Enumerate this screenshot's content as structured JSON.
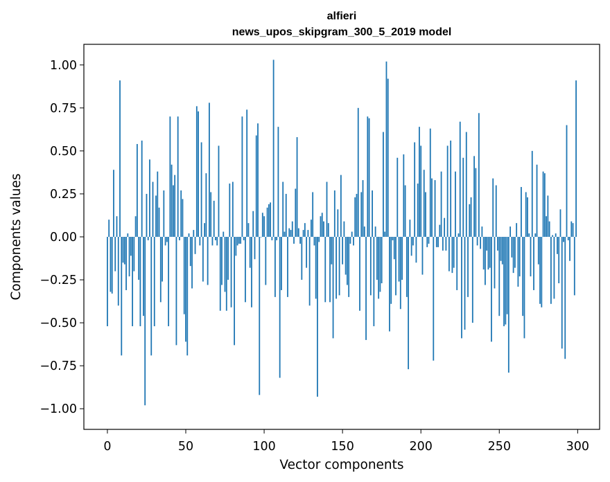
{
  "chart_data": {
    "type": "bar",
    "title_line1": "alfieri",
    "title_line2": "news_upos_skipgram_300_5_2019 model",
    "xlabel": "Vector components",
    "ylabel": "Components values",
    "xlim": [
      -15,
      314
    ],
    "ylim": [
      -1.12,
      1.12
    ],
    "xticks": [
      0,
      50,
      100,
      150,
      200,
      250,
      300
    ],
    "xtick_labels": [
      "0",
      "50",
      "100",
      "150",
      "200",
      "250",
      "300"
    ],
    "yticks": [
      1.0,
      0.75,
      0.5,
      0.25,
      0.0,
      -0.25,
      -0.5,
      -0.75,
      -1.0
    ],
    "ytick_labels": [
      "1.00",
      "0.75",
      "0.50",
      "0.25",
      "0.00",
      "−0.25",
      "−0.50",
      "−0.75",
      "−1.00"
    ],
    "bar_color": "#1f77b4",
    "values": [
      -0.52,
      0.1,
      -0.32,
      -0.33,
      0.39,
      -0.2,
      0.12,
      -0.4,
      0.91,
      -0.69,
      -0.15,
      -0.16,
      -0.31,
      0.02,
      -0.23,
      -0.11,
      -0.52,
      -0.2,
      0.12,
      0.54,
      -0.25,
      -0.52,
      0.56,
      -0.46,
      -0.98,
      0.25,
      -0.02,
      0.45,
      -0.69,
      0.32,
      -0.52,
      0.24,
      0.38,
      0.17,
      -0.38,
      -0.26,
      0.27,
      -0.05,
      -0.03,
      -0.52,
      0.7,
      0.42,
      0.3,
      0.36,
      -0.63,
      0.7,
      -0.02,
      0.27,
      0.22,
      -0.45,
      -0.61,
      -0.69,
      0.02,
      -0.17,
      -0.3,
      0.04,
      -0.1,
      0.76,
      0.73,
      -0.05,
      0.55,
      -0.26,
      0.08,
      0.37,
      -0.28,
      0.78,
      0.26,
      -0.05,
      0.21,
      -0.02,
      -0.05,
      0.53,
      -0.43,
      -0.28,
      0.03,
      -0.32,
      -0.43,
      -0.25,
      0.31,
      -0.41,
      0.32,
      -0.63,
      -0.11,
      -0.05,
      -0.04,
      -0.04,
      0.7,
      -0.02,
      -0.38,
      0.74,
      0.08,
      -0.18,
      -0.41,
      0.15,
      -0.13,
      0.59,
      0.66,
      -0.92,
      0.0,
      0.14,
      0.12,
      -0.28,
      0.17,
      0.19,
      0.2,
      -0.02,
      1.03,
      -0.35,
      -0.02,
      0.64,
      -0.82,
      -0.31,
      0.32,
      0.03,
      0.25,
      -0.35,
      0.05,
      0.04,
      0.09,
      -0.04,
      0.28,
      0.58,
      0.05,
      -0.04,
      -0.25,
      0.04,
      0.08,
      -0.18,
      0.04,
      -0.4,
      0.1,
      0.26,
      -0.05,
      -0.36,
      -0.93,
      -0.03,
      0.12,
      0.14,
      0.09,
      -0.38,
      0.32,
      0.08,
      -0.38,
      -0.16,
      -0.59,
      0.27,
      -0.36,
      0.16,
      -0.34,
      0.36,
      -0.16,
      0.09,
      -0.22,
      -0.28,
      -0.35,
      -0.04,
      0.03,
      -0.05,
      0.23,
      0.25,
      0.75,
      -0.43,
      0.26,
      0.33,
      0.06,
      -0.6,
      0.7,
      0.69,
      -0.34,
      0.27,
      -0.52,
      0.06,
      -0.25,
      -0.36,
      -0.32,
      -0.27,
      0.61,
      0.03,
      1.02,
      0.92,
      -0.55,
      -0.39,
      -0.02,
      -0.13,
      -0.34,
      0.46,
      -0.26,
      -0.42,
      -0.25,
      0.48,
      0.3,
      -0.35,
      -0.77,
      0.1,
      -0.11,
      -0.05,
      0.55,
      -0.15,
      0.31,
      0.64,
      0.53,
      -0.22,
      0.39,
      0.26,
      -0.06,
      -0.04,
      0.63,
      0.34,
      -0.72,
      0.33,
      -0.06,
      -0.06,
      0.07,
      0.38,
      -0.08,
      0.11,
      -0.08,
      0.53,
      -0.2,
      0.56,
      -0.21,
      -0.18,
      0.38,
      -0.31,
      0.02,
      0.67,
      -0.59,
      0.46,
      -0.54,
      0.61,
      -0.35,
      0.19,
      0.23,
      -0.5,
      0.47,
      0.4,
      -0.05,
      0.72,
      -0.07,
      0.06,
      -0.19,
      -0.28,
      -0.08,
      -0.19,
      -0.18,
      -0.61,
      0.34,
      -0.3,
      0.3,
      -0.08,
      -0.46,
      -0.14,
      -0.16,
      -0.52,
      -0.51,
      -0.45,
      -0.79,
      0.06,
      -0.12,
      -0.21,
      -0.18,
      0.08,
      -0.29,
      -0.23,
      0.29,
      -0.46,
      -0.59,
      0.26,
      0.23,
      0.02,
      -0.23,
      0.5,
      -0.31,
      0.02,
      0.42,
      -0.16,
      -0.39,
      -0.41,
      0.38,
      0.37,
      0.12,
      0.24,
      0.09,
      -0.39,
      0.01,
      -0.36,
      0.02,
      -0.1,
      -0.27,
      0.16,
      -0.65,
      -0.03,
      -0.71,
      0.65,
      -0.02,
      -0.14,
      0.09,
      0.08,
      -0.34,
      0.91
    ]
  }
}
